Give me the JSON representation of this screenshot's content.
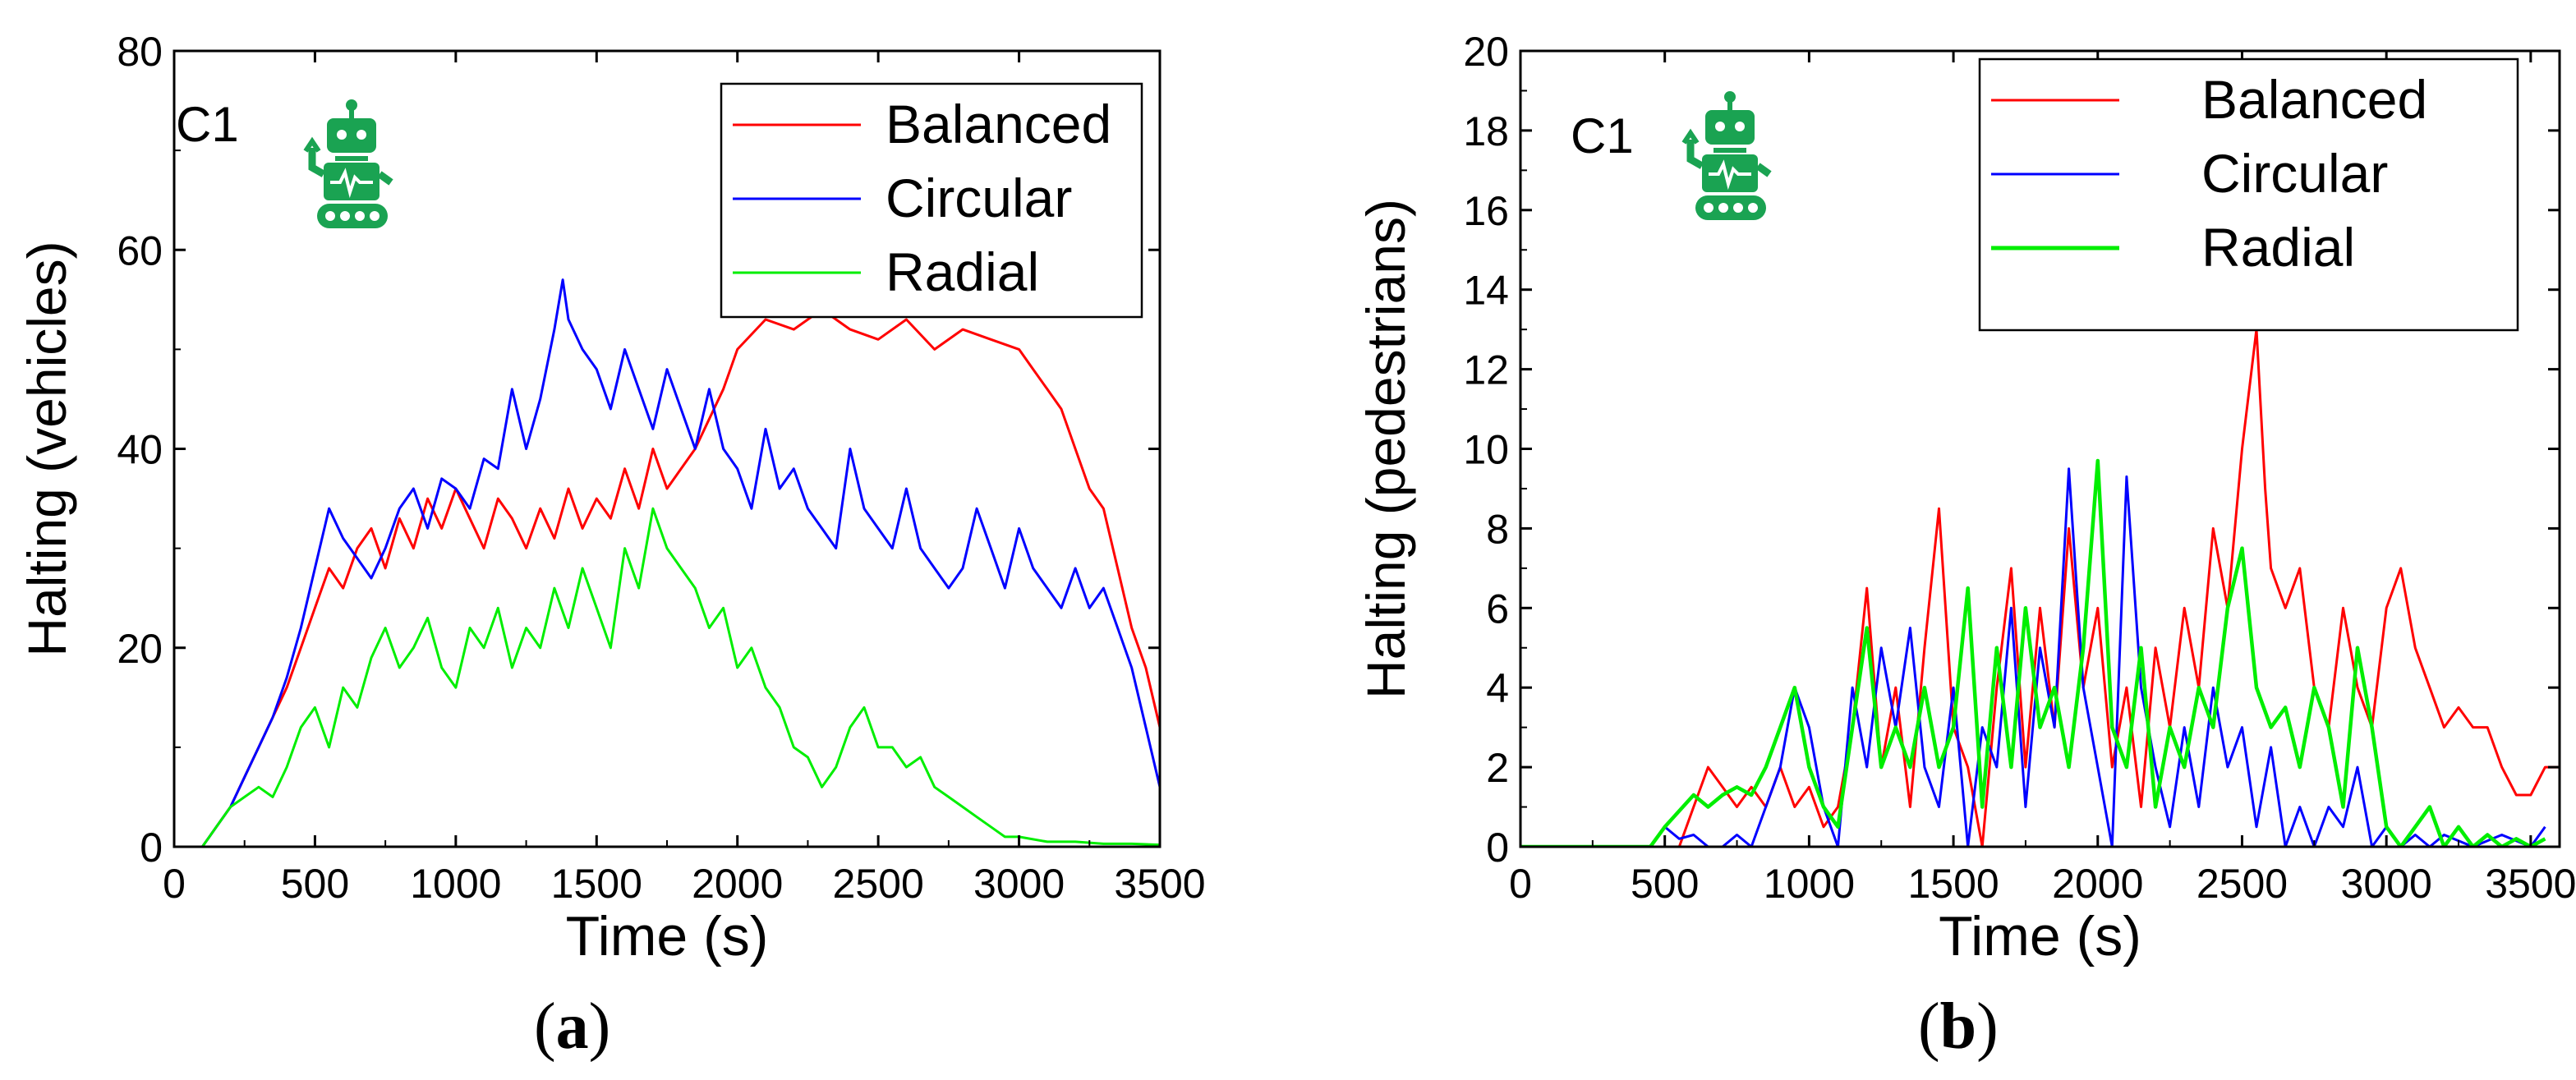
{
  "colors": {
    "balanced": "#ff0000",
    "circular": "#0000ff",
    "radial": "#00ee00",
    "robot": "#1aa352"
  },
  "panels": [
    {
      "caption": {
        "open": "(",
        "letter": "a",
        "close": ")"
      },
      "chart_data": {
        "type": "line",
        "title": "",
        "panel_label": "C1",
        "xlabel": "Time (s)",
        "ylabel": "Halting (vehicles)",
        "xlim": [
          0,
          3500
        ],
        "ylim": [
          0,
          80
        ],
        "xticks": [
          "0",
          "500",
          "1000",
          "1500",
          "2000",
          "2500",
          "3000",
          "3500"
        ],
        "yticks": [
          "0",
          "20",
          "40",
          "60",
          "80"
        ],
        "legend_position": "top-right",
        "series": [
          {
            "name": "Balanced",
            "color": "#ff0000",
            "x": [
              0,
              100,
              150,
              200,
              250,
              300,
              350,
              400,
              450,
              500,
              550,
              600,
              650,
              700,
              750,
              800,
              850,
              900,
              950,
              1000,
              1050,
              1100,
              1150,
              1200,
              1250,
              1300,
              1350,
              1400,
              1450,
              1500,
              1550,
              1600,
              1650,
              1700,
              1750,
              1800,
              1850,
              1900,
              1950,
              2000,
              2100,
              2200,
              2300,
              2400,
              2500,
              2600,
              2700,
              2800,
              2900,
              3000,
              3050,
              3100,
              3150,
              3200,
              3250,
              3300,
              3350,
              3400,
              3450,
              3500
            ],
            "y": [
              0,
              0,
              2,
              4,
              7,
              10,
              13,
              16,
              20,
              24,
              28,
              26,
              30,
              32,
              28,
              33,
              30,
              35,
              32,
              36,
              33,
              30,
              35,
              33,
              30,
              34,
              31,
              36,
              32,
              35,
              33,
              38,
              34,
              40,
              36,
              38,
              40,
              43,
              46,
              50,
              53,
              52,
              54,
              52,
              51,
              53,
              50,
              52,
              51,
              50,
              48,
              46,
              44,
              40,
              36,
              34,
              28,
              22,
              18,
              12
            ]
          },
          {
            "name": "Circular",
            "color": "#0000ff",
            "x": [
              0,
              100,
              150,
              200,
              250,
              300,
              350,
              400,
              450,
              500,
              550,
              600,
              650,
              700,
              750,
              800,
              850,
              900,
              950,
              1000,
              1050,
              1100,
              1150,
              1200,
              1250,
              1300,
              1350,
              1380,
              1400,
              1450,
              1500,
              1550,
              1600,
              1650,
              1700,
              1750,
              1800,
              1850,
              1900,
              1950,
              2000,
              2050,
              2100,
              2150,
              2200,
              2250,
              2300,
              2350,
              2400,
              2450,
              2500,
              2550,
              2600,
              2650,
              2700,
              2750,
              2800,
              2850,
              2900,
              2950,
              3000,
              3050,
              3100,
              3150,
              3200,
              3250,
              3300,
              3350,
              3400,
              3450,
              3500
            ],
            "y": [
              0,
              0,
              2,
              4,
              7,
              10,
              13,
              17,
              22,
              28,
              34,
              31,
              29,
              27,
              30,
              34,
              36,
              32,
              37,
              36,
              34,
              39,
              38,
              46,
              40,
              45,
              52,
              57,
              53,
              50,
              48,
              44,
              50,
              46,
              42,
              48,
              44,
              40,
              46,
              40,
              38,
              34,
              42,
              36,
              38,
              34,
              32,
              30,
              40,
              34,
              32,
              30,
              36,
              30,
              28,
              26,
              28,
              34,
              30,
              26,
              32,
              28,
              26,
              24,
              28,
              24,
              26,
              22,
              18,
              12,
              6
            ]
          },
          {
            "name": "Radial",
            "color": "#00ee00",
            "x": [
              0,
              100,
              150,
              200,
              250,
              300,
              350,
              400,
              450,
              500,
              550,
              600,
              650,
              700,
              750,
              800,
              850,
              900,
              950,
              1000,
              1050,
              1100,
              1150,
              1200,
              1250,
              1300,
              1350,
              1400,
              1450,
              1500,
              1550,
              1600,
              1650,
              1700,
              1750,
              1800,
              1850,
              1900,
              1950,
              2000,
              2050,
              2100,
              2150,
              2200,
              2250,
              2300,
              2350,
              2400,
              2450,
              2500,
              2550,
              2600,
              2650,
              2700,
              2750,
              2800,
              2850,
              2900,
              2950,
              3000,
              3100,
              3200,
              3300,
              3400,
              3500
            ],
            "y": [
              0,
              0,
              2,
              4,
              5,
              6,
              5,
              8,
              12,
              14,
              10,
              16,
              14,
              19,
              22,
              18,
              20,
              23,
              18,
              16,
              22,
              20,
              24,
              18,
              22,
              20,
              26,
              22,
              28,
              24,
              20,
              30,
              26,
              34,
              30,
              28,
              26,
              22,
              24,
              18,
              20,
              16,
              14,
              10,
              9,
              6,
              8,
              12,
              14,
              10,
              10,
              8,
              9,
              6,
              5,
              4,
              3,
              2,
              1,
              1,
              0.5,
              0.5,
              0.3,
              0.3,
              0.2
            ]
          }
        ]
      }
    },
    {
      "caption": {
        "open": "(",
        "letter": "b",
        "close": ")"
      },
      "chart_data": {
        "type": "line",
        "title": "",
        "panel_label": "C1",
        "xlabel": "Time (s)",
        "ylabel": "Halting (pedestrians)",
        "xlim": [
          0,
          3600
        ],
        "ylim": [
          0,
          20
        ],
        "xticks": [
          "0",
          "500",
          "1000",
          "1500",
          "2000",
          "2500",
          "3000",
          "3500"
        ],
        "yticks": [
          "0",
          "2",
          "4",
          "6",
          "8",
          "10",
          "12",
          "14",
          "16",
          "18",
          "20"
        ],
        "legend_position": "top-right",
        "series": [
          {
            "name": "Balanced",
            "color": "#ff0000",
            "x": [
              0,
              550,
              600,
              650,
              700,
              750,
              800,
              850,
              900,
              950,
              1000,
              1050,
              1100,
              1150,
              1200,
              1250,
              1300,
              1350,
              1400,
              1450,
              1500,
              1550,
              1600,
              1650,
              1700,
              1750,
              1800,
              1850,
              1900,
              1950,
              2000,
              2050,
              2100,
              2150,
              2200,
              2250,
              2300,
              2350,
              2400,
              2450,
              2500,
              2550,
              2580,
              2600,
              2650,
              2700,
              2750,
              2800,
              2850,
              2900,
              2950,
              3000,
              3050,
              3100,
              3150,
              3200,
              3250,
              3300,
              3350,
              3400,
              3450,
              3500,
              3550,
              3600
            ],
            "y": [
              0,
              0,
              1,
              2,
              1.5,
              1,
              1.5,
              1,
              2,
              1,
              1.5,
              0.5,
              1,
              3,
              6.5,
              2,
              4,
              1,
              5,
              8.5,
              3,
              2,
              0,
              4,
              7,
              2,
              6,
              3,
              8,
              4,
              6,
              2,
              4,
              1,
              5,
              3,
              6,
              4,
              8,
              6,
              10,
              13,
              9,
              7,
              6,
              7,
              4,
              3,
              6,
              4,
              3,
              6,
              7,
              5,
              4,
              3,
              3.5,
              3,
              3,
              2,
              1.3,
              1.3,
              2,
              2
            ]
          },
          {
            "name": "Circular",
            "color": "#0000ff",
            "x": [
              0,
              450,
              500,
              550,
              600,
              650,
              700,
              750,
              800,
              850,
              900,
              950,
              1000,
              1050,
              1100,
              1150,
              1200,
              1250,
              1300,
              1350,
              1400,
              1450,
              1500,
              1550,
              1600,
              1650,
              1700,
              1750,
              1800,
              1850,
              1900,
              1950,
              2000,
              2050,
              2100,
              2150,
              2200,
              2250,
              2300,
              2350,
              2400,
              2450,
              2500,
              2550,
              2600,
              2650,
              2700,
              2750,
              2800,
              2850,
              2900,
              2950,
              3000,
              3050,
              3100,
              3150,
              3200,
              3300,
              3400,
              3500,
              3550
            ],
            "y": [
              0,
              0,
              0.5,
              0.2,
              0.3,
              0,
              0,
              0.3,
              0,
              1,
              2,
              4,
              3,
              1,
              0,
              4,
              2,
              5,
              3,
              5.5,
              2,
              1,
              4,
              0,
              3,
              2,
              6,
              1,
              5,
              3,
              9.5,
              4,
              2,
              0,
              9.3,
              4,
              2,
              0.5,
              3,
              1,
              4,
              2,
              3,
              0.5,
              2.5,
              0,
              1,
              0,
              1,
              0.5,
              2,
              0,
              0.5,
              0,
              0.3,
              0,
              0.3,
              0,
              0.3,
              0,
              0.5
            ]
          },
          {
            "name": "Radial",
            "color": "#00ee00",
            "x": [
              0,
              450,
              500,
              600,
              650,
              700,
              750,
              800,
              850,
              900,
              950,
              1000,
              1050,
              1100,
              1150,
              1200,
              1250,
              1300,
              1350,
              1400,
              1450,
              1500,
              1550,
              1600,
              1650,
              1700,
              1750,
              1800,
              1850,
              1900,
              1950,
              2000,
              2050,
              2100,
              2150,
              2200,
              2250,
              2300,
              2350,
              2400,
              2450,
              2500,
              2550,
              2600,
              2650,
              2700,
              2750,
              2800,
              2850,
              2900,
              2950,
              3000,
              3050,
              3100,
              3150,
              3200,
              3250,
              3300,
              3350,
              3400,
              3450,
              3500,
              3550
            ],
            "y": [
              0,
              0,
              0.5,
              1.3,
              1,
              1.3,
              1.5,
              1.3,
              2,
              3,
              4,
              2,
              1,
              0.5,
              3,
              5.5,
              2,
              3,
              2,
              4,
              2,
              3,
              6.5,
              1,
              5,
              2,
              6,
              3,
              4,
              2,
              5,
              9.7,
              3,
              2,
              5,
              1,
              3,
              2,
              4,
              3,
              6,
              7.5,
              4,
              3,
              3.5,
              2,
              4,
              3,
              1,
              5,
              3,
              0.5,
              0,
              0.5,
              1,
              0,
              0.5,
              0,
              0.3,
              0,
              0.2,
              0,
              0.2
            ]
          }
        ]
      }
    }
  ]
}
